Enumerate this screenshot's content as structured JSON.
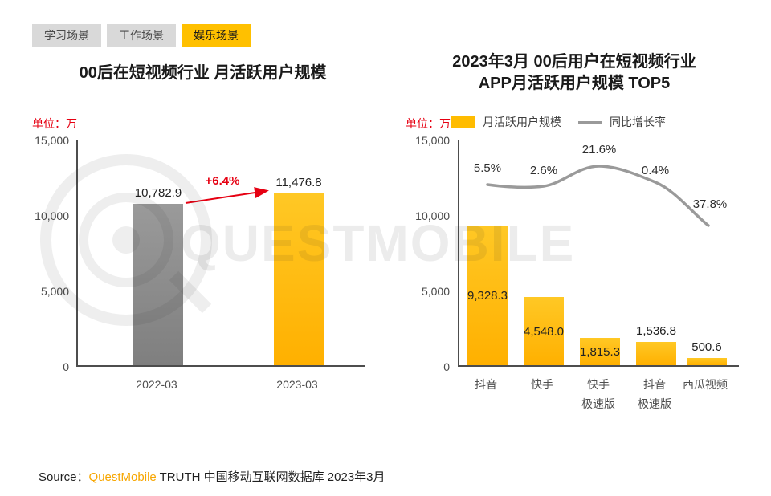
{
  "tabs": {
    "items": [
      {
        "label": "学习场景",
        "active": false
      },
      {
        "label": "工作场景",
        "active": false
      },
      {
        "label": "娱乐场景",
        "active": true
      }
    ]
  },
  "colors": {
    "accent_yellow": "#ffbc00",
    "active_tab_yellow": "#ffc000",
    "bar_gray": "#8c8c8c",
    "line_gray": "#9a9a9a",
    "unit_red": "#e60012",
    "brand_orange": "#f7a600"
  },
  "chart_data": [
    {
      "type": "bar",
      "title": "00后在短视频行业 月活跃用户规模",
      "unit_label": "单位：万",
      "categories": [
        "2022-03",
        "2023-03"
      ],
      "values": [
        10782.9,
        11476.8
      ],
      "value_labels": [
        "10,782.9",
        "11,476.8"
      ],
      "growth_annotation": "+6.4%",
      "ylim": [
        0,
        15000
      ],
      "ytick_labels": [
        "15,000",
        "10,000",
        "5,000",
        "0"
      ],
      "bar_colors": [
        "#8c8c8c",
        "#ffbc00"
      ],
      "grid": false,
      "legend_position": "none"
    },
    {
      "type": "bar+line",
      "title": "2023年3月 00后用户在短视频行业\nAPP月活跃用户规模 TOP5",
      "unit_label": "单位：万",
      "legend": [
        {
          "label": "月活跃用户规模",
          "marker": "bar",
          "color": "#ffbc00"
        },
        {
          "label": "同比增长率",
          "marker": "line",
          "color": "#9a9a9a"
        }
      ],
      "categories": [
        "抖音",
        "快手",
        "快手\n极速版",
        "抖音\n极速版",
        "西瓜视频"
      ],
      "bar_values": [
        9328.3,
        4548.0,
        1815.3,
        1536.8,
        500.6
      ],
      "bar_value_labels": [
        "9,328.3",
        "4,548.0",
        "1,815.3",
        "1,536.8",
        "500.6"
      ],
      "line_series_name": "同比增长率",
      "line_value_labels": [
        "5.5%",
        "2.6%",
        "21.6%",
        "0.4%",
        "37.8%"
      ],
      "ylim": [
        0,
        15000
      ],
      "ytick_labels": [
        "15,000",
        "10,000",
        "5,000",
        "0"
      ],
      "grid": false,
      "legend_position": "top"
    }
  ],
  "watermark": {
    "text": "QUESTMOBILE"
  },
  "source": {
    "label": "Source：",
    "brand": "QuestMobile",
    "suffix": " TRUTH 中国移动互联网数据库 2023年3月"
  }
}
